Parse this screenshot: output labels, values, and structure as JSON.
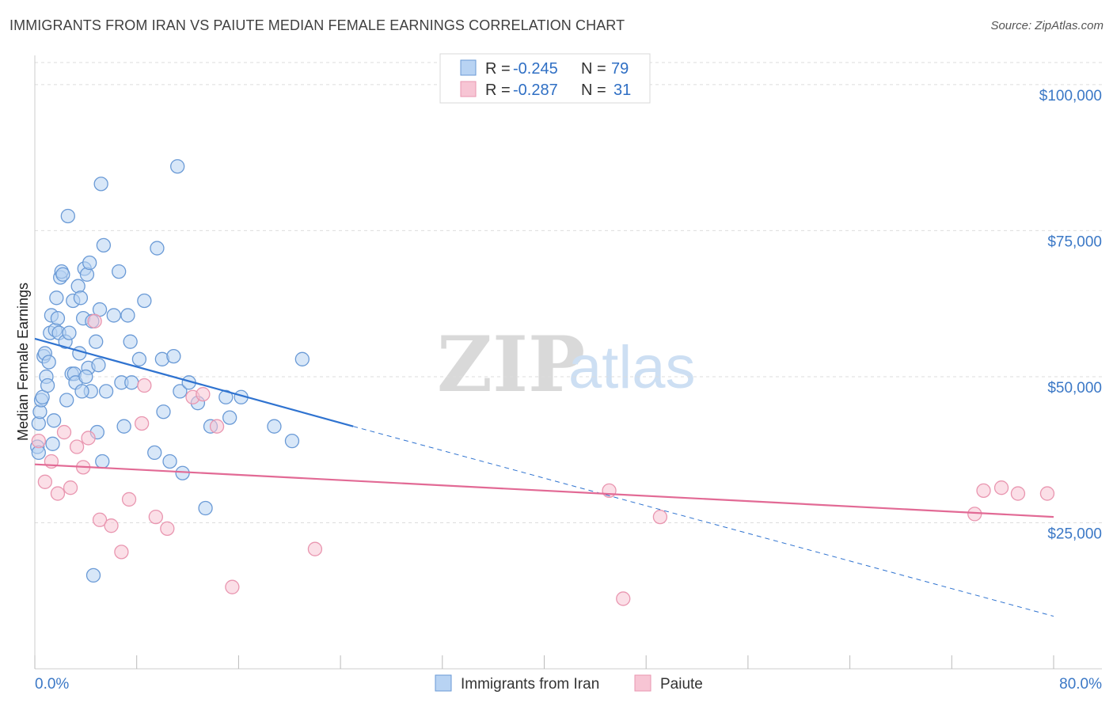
{
  "title": "IMMIGRANTS FROM IRAN VS PAIUTE MEDIAN FEMALE EARNINGS CORRELATION CHART",
  "source": "Source: ZipAtlas.com",
  "watermark": {
    "zip": "ZIP",
    "atlas": "atlas"
  },
  "legend": {
    "rows": [
      {
        "r_label": "R =",
        "r_value": "-0.245",
        "n_label": "N =",
        "n_value": "79"
      },
      {
        "r_label": "R =",
        "r_value": "-0.287",
        "n_label": "N =",
        "n_value": "31"
      }
    ]
  },
  "bottom_legend": [
    "Immigrants from Iran",
    "Paiute"
  ],
  "colors": {
    "iran_fill": "#b8d3f3",
    "iran_stroke": "#6a9ad6",
    "iran_line": "#2f73d0",
    "paiute_fill": "#f7c5d4",
    "paiute_stroke": "#e996b0",
    "paiute_line": "#e26a95",
    "grid": "#dddddd",
    "axis_text": "#3b78c6"
  },
  "chart_data": {
    "type": "scatter",
    "title": "IMMIGRANTS FROM IRAN VS PAIUTE MEDIAN FEMALE EARNINGS CORRELATION CHART",
    "xlabel": "",
    "ylabel": "Median Female Earnings",
    "xlim": [
      0,
      80
    ],
    "ylim": [
      0,
      105000
    ],
    "x_tick_labels": [
      "0.0%",
      "80.0%"
    ],
    "y_ticks": [
      25000,
      50000,
      75000,
      100000
    ],
    "y_tick_labels": [
      "$25,000",
      "$50,000",
      "$75,000",
      "$100,000"
    ],
    "series": [
      {
        "name": "Immigrants from Iran",
        "R": -0.245,
        "N": 79,
        "trend": {
          "x0": 0,
          "y0": 56500,
          "x1": 25,
          "y1": 41500,
          "dash_to_x": 80,
          "dash_to_y": 9000
        },
        "points": [
          [
            0.2,
            38000
          ],
          [
            0.3,
            37000
          ],
          [
            0.3,
            42000
          ],
          [
            0.4,
            44000
          ],
          [
            0.5,
            46000
          ],
          [
            0.6,
            46500
          ],
          [
            0.7,
            53500
          ],
          [
            0.8,
            54000
          ],
          [
            0.9,
            50000
          ],
          [
            1.0,
            48500
          ],
          [
            1.1,
            52500
          ],
          [
            1.2,
            57500
          ],
          [
            1.3,
            60500
          ],
          [
            1.4,
            38500
          ],
          [
            1.5,
            42500
          ],
          [
            1.6,
            58000
          ],
          [
            1.7,
            63500
          ],
          [
            1.8,
            60000
          ],
          [
            1.9,
            57500
          ],
          [
            2.0,
            67000
          ],
          [
            2.1,
            68000
          ],
          [
            2.2,
            67500
          ],
          [
            2.4,
            56000
          ],
          [
            2.5,
            46000
          ],
          [
            2.6,
            77500
          ],
          [
            2.7,
            57500
          ],
          [
            2.9,
            50500
          ],
          [
            3.0,
            63000
          ],
          [
            3.1,
            50500
          ],
          [
            3.2,
            49000
          ],
          [
            3.4,
            65500
          ],
          [
            3.5,
            54000
          ],
          [
            3.6,
            63500
          ],
          [
            3.8,
            60000
          ],
          [
            3.9,
            68500
          ],
          [
            4.1,
            67500
          ],
          [
            4.2,
            51500
          ],
          [
            4.3,
            69500
          ],
          [
            4.4,
            47500
          ],
          [
            4.5,
            59500
          ],
          [
            4.6,
            16000
          ],
          [
            4.8,
            56000
          ],
          [
            4.9,
            40500
          ],
          [
            5.0,
            52000
          ],
          [
            5.1,
            61500
          ],
          [
            5.2,
            83000
          ],
          [
            5.3,
            35500
          ],
          [
            5.4,
            72500
          ],
          [
            5.6,
            47500
          ],
          [
            6.2,
            60500
          ],
          [
            6.6,
            68000
          ],
          [
            6.8,
            49000
          ],
          [
            7.0,
            41500
          ],
          [
            7.3,
            60500
          ],
          [
            7.5,
            56000
          ],
          [
            7.6,
            49000
          ],
          [
            8.2,
            53000
          ],
          [
            8.6,
            63000
          ],
          [
            9.4,
            37000
          ],
          [
            9.6,
            72000
          ],
          [
            10.0,
            53000
          ],
          [
            10.1,
            44000
          ],
          [
            10.6,
            35500
          ],
          [
            10.9,
            53500
          ],
          [
            11.2,
            86000
          ],
          [
            11.4,
            47500
          ],
          [
            11.6,
            33500
          ],
          [
            12.1,
            49000
          ],
          [
            12.8,
            45500
          ],
          [
            13.4,
            27500
          ],
          [
            13.8,
            41500
          ],
          [
            15.0,
            46500
          ],
          [
            15.3,
            43000
          ],
          [
            16.2,
            46500
          ],
          [
            18.8,
            41500
          ],
          [
            20.2,
            39000
          ],
          [
            21.0,
            53000
          ],
          [
            4.0,
            50000
          ],
          [
            3.7,
            47500
          ]
        ]
      },
      {
        "name": "Paiute",
        "R": -0.287,
        "N": 31,
        "trend": {
          "x0": 0,
          "y0": 35000,
          "x1": 80,
          "y1": 26000
        },
        "points": [
          [
            0.3,
            39000
          ],
          [
            0.8,
            32000
          ],
          [
            1.3,
            35500
          ],
          [
            1.8,
            30000
          ],
          [
            2.3,
            40500
          ],
          [
            2.8,
            31000
          ],
          [
            3.3,
            38000
          ],
          [
            3.8,
            34500
          ],
          [
            4.2,
            39500
          ],
          [
            4.7,
            59500
          ],
          [
            5.1,
            25500
          ],
          [
            6.0,
            24500
          ],
          [
            6.8,
            20000
          ],
          [
            7.4,
            29000
          ],
          [
            8.4,
            42000
          ],
          [
            8.6,
            48500
          ],
          [
            9.5,
            26000
          ],
          [
            10.4,
            24000
          ],
          [
            12.4,
            46500
          ],
          [
            13.2,
            47000
          ],
          [
            14.3,
            41500
          ],
          [
            15.5,
            14000
          ],
          [
            22.0,
            20500
          ],
          [
            45.1,
            30500
          ],
          [
            46.2,
            12000
          ],
          [
            49.1,
            26000
          ],
          [
            73.8,
            26500
          ],
          [
            74.5,
            30500
          ],
          [
            75.9,
            31000
          ],
          [
            77.2,
            30000
          ],
          [
            79.5,
            30000
          ]
        ]
      }
    ]
  }
}
